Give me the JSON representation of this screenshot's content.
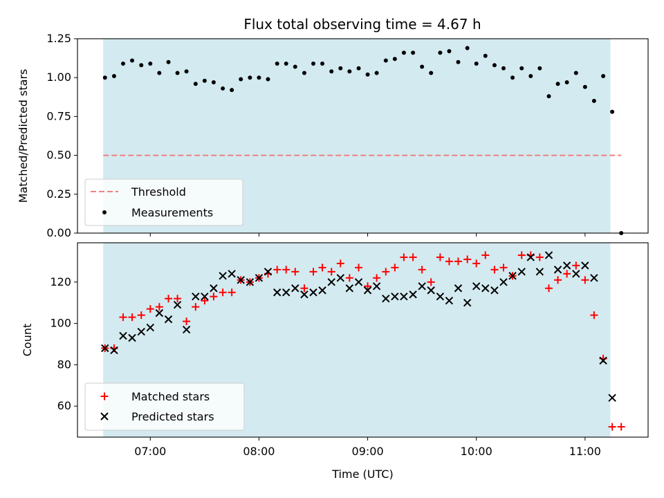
{
  "title": "Flux total observing time = 4.67 h",
  "colors": {
    "shade": "#d3eaf0",
    "threshold": "#f08080",
    "measurement": "#000000",
    "matched": "#ff0000",
    "predicted": "#000000"
  },
  "chart_data": [
    {
      "type": "scatter",
      "ylabel": "Matched/Predicted stars",
      "xlabel": "",
      "xlim": [
        6.33,
        11.58
      ],
      "ylim": [
        0,
        1.25
      ],
      "yticks": [
        "0.00",
        "0.25",
        "0.50",
        "0.75",
        "1.00",
        "1.25"
      ],
      "xticks_hidden": true,
      "shaded_range": [
        6.567,
        11.233
      ],
      "threshold": {
        "name": "Threshold",
        "value": 0.5,
        "x_range": [
          6.567,
          11.333
        ]
      },
      "legend_position": "lower-left",
      "series": [
        {
          "name": "Measurements",
          "points": [
            [
              6.583,
              1.0
            ],
            [
              6.667,
              1.01
            ],
            [
              6.75,
              1.09
            ],
            [
              6.833,
              1.11
            ],
            [
              6.917,
              1.08
            ],
            [
              7.0,
              1.09
            ],
            [
              7.083,
              1.03
            ],
            [
              7.167,
              1.1
            ],
            [
              7.25,
              1.03
            ],
            [
              7.333,
              1.04
            ],
            [
              7.417,
              0.96
            ],
            [
              7.5,
              0.98
            ],
            [
              7.583,
              0.97
            ],
            [
              7.667,
              0.93
            ],
            [
              7.75,
              0.92
            ],
            [
              7.833,
              0.99
            ],
            [
              7.917,
              1.0
            ],
            [
              8.0,
              1.0
            ],
            [
              8.083,
              0.99
            ],
            [
              8.167,
              1.09
            ],
            [
              8.25,
              1.09
            ],
            [
              8.333,
              1.07
            ],
            [
              8.417,
              1.03
            ],
            [
              8.5,
              1.09
            ],
            [
              8.583,
              1.09
            ],
            [
              8.667,
              1.04
            ],
            [
              8.75,
              1.06
            ],
            [
              8.833,
              1.04
            ],
            [
              8.917,
              1.06
            ],
            [
              9.0,
              1.02
            ],
            [
              9.083,
              1.03
            ],
            [
              9.167,
              1.11
            ],
            [
              9.25,
              1.12
            ],
            [
              9.333,
              1.16
            ],
            [
              9.417,
              1.16
            ],
            [
              9.5,
              1.07
            ],
            [
              9.583,
              1.03
            ],
            [
              9.667,
              1.16
            ],
            [
              9.75,
              1.17
            ],
            [
              9.833,
              1.1
            ],
            [
              9.917,
              1.19
            ],
            [
              10.0,
              1.09
            ],
            [
              10.083,
              1.14
            ],
            [
              10.167,
              1.08
            ],
            [
              10.25,
              1.06
            ],
            [
              10.333,
              1.0
            ],
            [
              10.417,
              1.06
            ],
            [
              10.5,
              1.01
            ],
            [
              10.583,
              1.06
            ],
            [
              10.667,
              0.88
            ],
            [
              10.75,
              0.96
            ],
            [
              10.833,
              0.97
            ],
            [
              10.917,
              1.03
            ],
            [
              11.0,
              0.94
            ],
            [
              11.083,
              0.85
            ],
            [
              11.167,
              1.01
            ],
            [
              11.25,
              0.78
            ],
            [
              11.333,
              0.0
            ]
          ]
        }
      ]
    },
    {
      "type": "scatter",
      "xlabel": "Time (UTC)",
      "ylabel": "Count",
      "xlim": [
        6.33,
        11.58
      ],
      "ylim": [
        45,
        139
      ],
      "yticks": [
        "60",
        "80",
        "100",
        "120"
      ],
      "xticks": [
        "07:00",
        "08:00",
        "09:00",
        "10:00",
        "11:00"
      ],
      "shaded_range": [
        6.567,
        11.233
      ],
      "legend_position": "lower-left",
      "series": [
        {
          "name": "Matched stars",
          "marker": "plus",
          "points": [
            [
              6.583,
              88
            ],
            [
              6.667,
              88
            ],
            [
              6.75,
              103
            ],
            [
              6.833,
              103
            ],
            [
              6.917,
              104
            ],
            [
              7.0,
              107
            ],
            [
              7.083,
              108
            ],
            [
              7.167,
              112
            ],
            [
              7.25,
              112
            ],
            [
              7.333,
              101
            ],
            [
              7.417,
              108
            ],
            [
              7.5,
              111
            ],
            [
              7.583,
              113
            ],
            [
              7.667,
              115
            ],
            [
              7.75,
              115
            ],
            [
              7.833,
              121
            ],
            [
              7.917,
              120
            ],
            [
              8.0,
              122
            ],
            [
              8.083,
              124
            ],
            [
              8.167,
              126
            ],
            [
              8.25,
              126
            ],
            [
              8.333,
              125
            ],
            [
              8.417,
              117
            ],
            [
              8.5,
              125
            ],
            [
              8.583,
              127
            ],
            [
              8.667,
              125
            ],
            [
              8.75,
              129
            ],
            [
              8.833,
              122
            ],
            [
              8.917,
              127
            ],
            [
              9.0,
              118
            ],
            [
              9.083,
              122
            ],
            [
              9.167,
              125
            ],
            [
              9.25,
              127
            ],
            [
              9.333,
              132
            ],
            [
              9.417,
              132
            ],
            [
              9.5,
              126
            ],
            [
              9.583,
              120
            ],
            [
              9.667,
              132
            ],
            [
              9.75,
              130
            ],
            [
              9.833,
              130
            ],
            [
              9.917,
              131
            ],
            [
              10.0,
              129
            ],
            [
              10.083,
              133
            ],
            [
              10.167,
              126
            ],
            [
              10.25,
              127
            ],
            [
              10.333,
              123
            ],
            [
              10.417,
              133
            ],
            [
              10.5,
              133
            ],
            [
              10.583,
              132
            ],
            [
              10.667,
              117
            ],
            [
              10.75,
              121
            ],
            [
              10.833,
              124
            ],
            [
              10.917,
              128
            ],
            [
              11.0,
              121
            ],
            [
              11.083,
              104
            ],
            [
              11.167,
              83
            ],
            [
              11.25,
              50
            ],
            [
              11.333,
              50
            ]
          ]
        },
        {
          "name": "Predicted stars",
          "marker": "x",
          "points": [
            [
              6.583,
              88
            ],
            [
              6.667,
              87
            ],
            [
              6.75,
              94
            ],
            [
              6.833,
              93
            ],
            [
              6.917,
              96
            ],
            [
              7.0,
              98
            ],
            [
              7.083,
              105
            ],
            [
              7.167,
              102
            ],
            [
              7.25,
              109
            ],
            [
              7.333,
              97
            ],
            [
              7.417,
              113
            ],
            [
              7.5,
              113
            ],
            [
              7.583,
              117
            ],
            [
              7.667,
              123
            ],
            [
              7.75,
              124
            ],
            [
              7.833,
              121
            ],
            [
              7.917,
              120
            ],
            [
              8.0,
              122
            ],
            [
              8.083,
              125
            ],
            [
              8.167,
              115
            ],
            [
              8.25,
              115
            ],
            [
              8.333,
              117
            ],
            [
              8.417,
              114
            ],
            [
              8.5,
              115
            ],
            [
              8.583,
              116
            ],
            [
              8.667,
              120
            ],
            [
              8.75,
              122
            ],
            [
              8.833,
              117
            ],
            [
              8.917,
              120
            ],
            [
              9.0,
              116
            ],
            [
              9.083,
              118
            ],
            [
              9.167,
              112
            ],
            [
              9.25,
              113
            ],
            [
              9.333,
              113
            ],
            [
              9.417,
              114
            ],
            [
              9.5,
              118
            ],
            [
              9.583,
              116
            ],
            [
              9.667,
              113
            ],
            [
              9.75,
              111
            ],
            [
              9.833,
              117
            ],
            [
              9.917,
              110
            ],
            [
              10.0,
              118
            ],
            [
              10.083,
              117
            ],
            [
              10.167,
              116
            ],
            [
              10.25,
              120
            ],
            [
              10.333,
              123
            ],
            [
              10.417,
              125
            ],
            [
              10.5,
              132
            ],
            [
              10.583,
              125
            ],
            [
              10.667,
              133
            ],
            [
              10.75,
              126
            ],
            [
              10.833,
              128
            ],
            [
              10.917,
              124
            ],
            [
              11.0,
              128
            ],
            [
              11.083,
              122
            ],
            [
              11.167,
              82
            ],
            [
              11.25,
              64
            ]
          ]
        }
      ]
    }
  ]
}
